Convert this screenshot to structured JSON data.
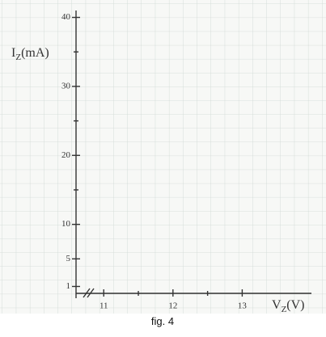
{
  "chart_data": {
    "type": "line",
    "caption": "fig. 4",
    "xlabel": [
      "V",
      "Z",
      "(V)"
    ],
    "ylabel": [
      "I",
      "Z",
      "(mA)"
    ],
    "xlim": [
      10.6,
      14
    ],
    "ylim": [
      0,
      41
    ],
    "xticks": [
      11,
      12,
      13
    ],
    "yticks": [
      1,
      5,
      10,
      20,
      30,
      40
    ],
    "minor_xticks": [
      11.5,
      12.5
    ],
    "minor_yticks": [
      15,
      25,
      35
    ],
    "x_axis_break": true,
    "series": []
  }
}
